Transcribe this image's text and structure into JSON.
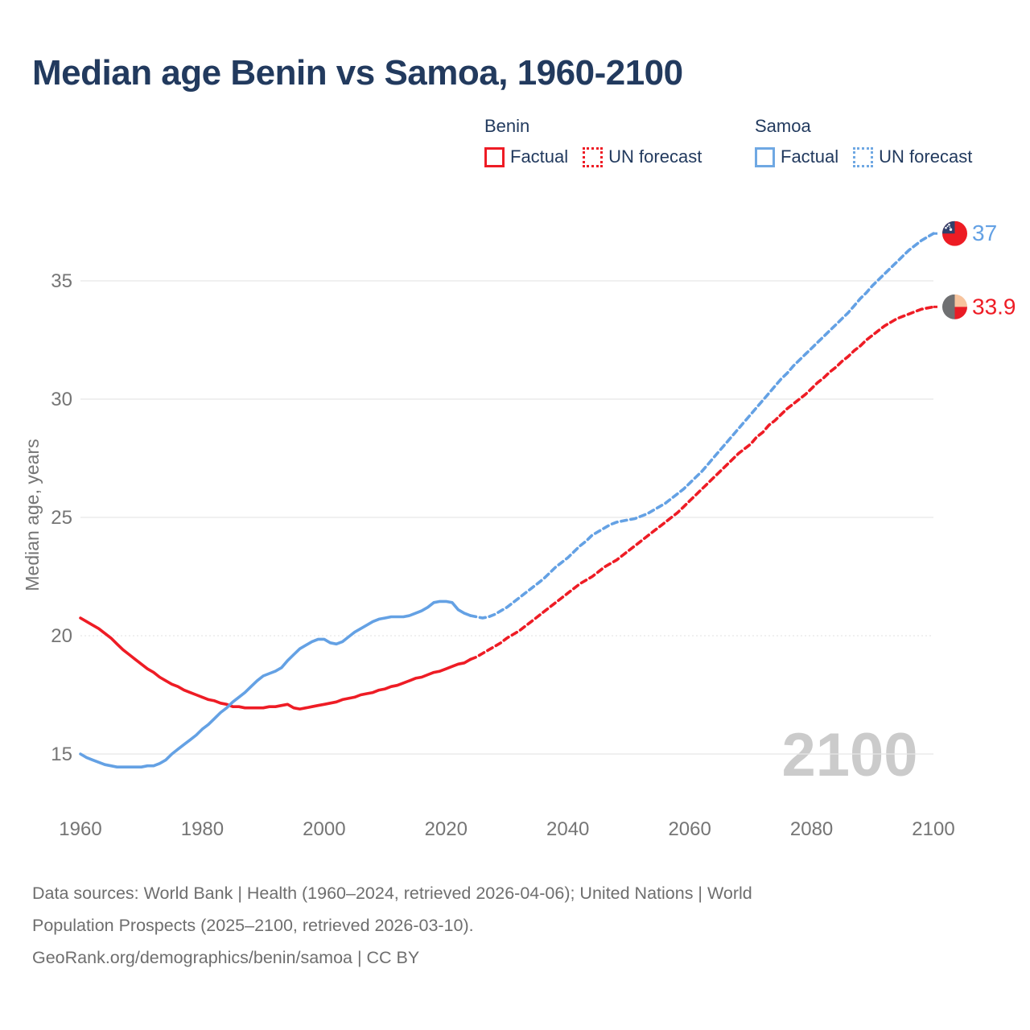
{
  "title": "Median age Benin vs Samoa, 1960-2100",
  "legend": {
    "groups": [
      {
        "country": "Benin",
        "color": "#EE1C25",
        "items": [
          {
            "label": "Factual",
            "line": "solid"
          },
          {
            "label": "UN forecast",
            "line": "dotted"
          }
        ]
      },
      {
        "country": "Samoa",
        "color": "#6FA8E3",
        "items": [
          {
            "label": "Factual",
            "line": "solid"
          },
          {
            "label": "UN forecast",
            "line": "dotted"
          }
        ]
      }
    ]
  },
  "chart_data": {
    "type": "line",
    "title": "Median age Benin vs Samoa, 1960-2100",
    "xlabel": "",
    "ylabel": "Median age, years",
    "x_ticks": [
      1960,
      1980,
      2000,
      2020,
      2040,
      2060,
      2080,
      2100
    ],
    "y_ticks": [
      15,
      20,
      25,
      30,
      35
    ],
    "xlim": [
      1960,
      2100
    ],
    "ylim": [
      13.5,
      38.5
    ],
    "grid": "horizontal-only",
    "dotted_gridline_at": 20,
    "legend_position": "top-right",
    "watermark": "2100",
    "colors": {
      "benin": "#EE1C25",
      "samoa": "#64A1E4"
    },
    "series": [
      {
        "name": "Benin factual",
        "color": "#EE1C25",
        "style": "solid",
        "points": [
          [
            1960,
            20.75
          ],
          [
            1961,
            20.6
          ],
          [
            1962,
            20.45
          ],
          [
            1963,
            20.3
          ],
          [
            1964,
            20.1
          ],
          [
            1965,
            19.9
          ],
          [
            1966,
            19.65
          ],
          [
            1967,
            19.4
          ],
          [
            1968,
            19.2
          ],
          [
            1969,
            19.0
          ],
          [
            1970,
            18.8
          ],
          [
            1971,
            18.6
          ],
          [
            1972,
            18.45
          ],
          [
            1973,
            18.25
          ],
          [
            1974,
            18.1
          ],
          [
            1975,
            17.95
          ],
          [
            1976,
            17.85
          ],
          [
            1977,
            17.7
          ],
          [
            1978,
            17.6
          ],
          [
            1979,
            17.5
          ],
          [
            1980,
            17.4
          ],
          [
            1981,
            17.3
          ],
          [
            1982,
            17.25
          ],
          [
            1983,
            17.15
          ],
          [
            1984,
            17.1
          ],
          [
            1985,
            17.0
          ],
          [
            1986,
            17.0
          ],
          [
            1987,
            16.95
          ],
          [
            1988,
            16.95
          ],
          [
            1989,
            16.95
          ],
          [
            1990,
            16.95
          ],
          [
            1991,
            17.0
          ],
          [
            1992,
            17.0
          ],
          [
            1993,
            17.05
          ],
          [
            1994,
            17.1
          ],
          [
            1995,
            16.95
          ],
          [
            1996,
            16.9
          ],
          [
            1997,
            16.95
          ],
          [
            1998,
            17.0
          ],
          [
            1999,
            17.05
          ],
          [
            2000,
            17.1
          ],
          [
            2001,
            17.15
          ],
          [
            2002,
            17.2
          ],
          [
            2003,
            17.3
          ],
          [
            2004,
            17.35
          ],
          [
            2005,
            17.4
          ],
          [
            2006,
            17.5
          ],
          [
            2007,
            17.55
          ],
          [
            2008,
            17.6
          ],
          [
            2009,
            17.7
          ],
          [
            2010,
            17.75
          ],
          [
            2011,
            17.85
          ],
          [
            2012,
            17.9
          ],
          [
            2013,
            18.0
          ],
          [
            2014,
            18.1
          ],
          [
            2015,
            18.2
          ],
          [
            2016,
            18.25
          ],
          [
            2017,
            18.35
          ],
          [
            2018,
            18.45
          ],
          [
            2019,
            18.5
          ],
          [
            2020,
            18.6
          ],
          [
            2021,
            18.7
          ],
          [
            2022,
            18.8
          ],
          [
            2023,
            18.85
          ],
          [
            2024,
            19.0
          ]
        ]
      },
      {
        "name": "Benin UN forecast",
        "color": "#EE1C25",
        "style": "dashed",
        "points": [
          [
            2024,
            19.0
          ],
          [
            2025,
            19.1
          ],
          [
            2026,
            19.25
          ],
          [
            2027,
            19.4
          ],
          [
            2028,
            19.55
          ],
          [
            2029,
            19.7
          ],
          [
            2030,
            19.9
          ],
          [
            2031,
            20.05
          ],
          [
            2032,
            20.2
          ],
          [
            2033,
            20.4
          ],
          [
            2034,
            20.6
          ],
          [
            2035,
            20.8
          ],
          [
            2036,
            21.0
          ],
          [
            2037,
            21.2
          ],
          [
            2038,
            21.4
          ],
          [
            2039,
            21.6
          ],
          [
            2040,
            21.8
          ],
          [
            2041,
            22.0
          ],
          [
            2042,
            22.2
          ],
          [
            2043,
            22.35
          ],
          [
            2044,
            22.5
          ],
          [
            2045,
            22.7
          ],
          [
            2046,
            22.9
          ],
          [
            2047,
            23.05
          ],
          [
            2048,
            23.2
          ],
          [
            2049,
            23.4
          ],
          [
            2050,
            23.6
          ],
          [
            2051,
            23.8
          ],
          [
            2052,
            24.0
          ],
          [
            2053,
            24.2
          ],
          [
            2054,
            24.4
          ],
          [
            2055,
            24.6
          ],
          [
            2056,
            24.8
          ],
          [
            2057,
            25.0
          ],
          [
            2058,
            25.2
          ],
          [
            2059,
            25.45
          ],
          [
            2060,
            25.7
          ],
          [
            2061,
            25.95
          ],
          [
            2062,
            26.2
          ],
          [
            2063,
            26.45
          ],
          [
            2064,
            26.7
          ],
          [
            2065,
            26.95
          ],
          [
            2066,
            27.2
          ],
          [
            2067,
            27.45
          ],
          [
            2068,
            27.7
          ],
          [
            2069,
            27.9
          ],
          [
            2070,
            28.1
          ],
          [
            2071,
            28.4
          ],
          [
            2072,
            28.6
          ],
          [
            2073,
            28.9
          ],
          [
            2074,
            29.1
          ],
          [
            2075,
            29.35
          ],
          [
            2076,
            29.6
          ],
          [
            2077,
            29.8
          ],
          [
            2078,
            30.0
          ],
          [
            2079,
            30.2
          ],
          [
            2080,
            30.45
          ],
          [
            2081,
            30.7
          ],
          [
            2082,
            30.9
          ],
          [
            2083,
            31.15
          ],
          [
            2084,
            31.35
          ],
          [
            2085,
            31.6
          ],
          [
            2086,
            31.8
          ],
          [
            2087,
            32.05
          ],
          [
            2088,
            32.25
          ],
          [
            2089,
            32.5
          ],
          [
            2090,
            32.7
          ],
          [
            2091,
            32.9
          ],
          [
            2092,
            33.1
          ],
          [
            2093,
            33.25
          ],
          [
            2094,
            33.4
          ],
          [
            2095,
            33.5
          ],
          [
            2096,
            33.6
          ],
          [
            2097,
            33.7
          ],
          [
            2098,
            33.8
          ],
          [
            2099,
            33.85
          ],
          [
            2100,
            33.9
          ]
        ]
      },
      {
        "name": "Samoa factual",
        "color": "#64A1E4",
        "style": "solid",
        "points": [
          [
            1960,
            15.0
          ],
          [
            1961,
            14.85
          ],
          [
            1962,
            14.75
          ],
          [
            1963,
            14.65
          ],
          [
            1964,
            14.55
          ],
          [
            1965,
            14.5
          ],
          [
            1966,
            14.45
          ],
          [
            1967,
            14.45
          ],
          [
            1968,
            14.45
          ],
          [
            1969,
            14.45
          ],
          [
            1970,
            14.45
          ],
          [
            1971,
            14.5
          ],
          [
            1972,
            14.5
          ],
          [
            1973,
            14.6
          ],
          [
            1974,
            14.75
          ],
          [
            1975,
            15.0
          ],
          [
            1976,
            15.2
          ],
          [
            1977,
            15.4
          ],
          [
            1978,
            15.6
          ],
          [
            1979,
            15.8
          ],
          [
            1980,
            16.05
          ],
          [
            1981,
            16.25
          ],
          [
            1982,
            16.5
          ],
          [
            1983,
            16.75
          ],
          [
            1984,
            16.95
          ],
          [
            1985,
            17.2
          ],
          [
            1986,
            17.4
          ],
          [
            1987,
            17.6
          ],
          [
            1988,
            17.85
          ],
          [
            1989,
            18.1
          ],
          [
            1990,
            18.3
          ],
          [
            1991,
            18.4
          ],
          [
            1992,
            18.5
          ],
          [
            1993,
            18.65
          ],
          [
            1994,
            18.95
          ],
          [
            1995,
            19.2
          ],
          [
            1996,
            19.45
          ],
          [
            1997,
            19.6
          ],
          [
            1998,
            19.75
          ],
          [
            1999,
            19.85
          ],
          [
            2000,
            19.85
          ],
          [
            2001,
            19.7
          ],
          [
            2002,
            19.65
          ],
          [
            2003,
            19.75
          ],
          [
            2004,
            19.95
          ],
          [
            2005,
            20.15
          ],
          [
            2006,
            20.3
          ],
          [
            2007,
            20.45
          ],
          [
            2008,
            20.6
          ],
          [
            2009,
            20.7
          ],
          [
            2010,
            20.75
          ],
          [
            2011,
            20.8
          ],
          [
            2012,
            20.8
          ],
          [
            2013,
            20.8
          ],
          [
            2014,
            20.85
          ],
          [
            2015,
            20.95
          ],
          [
            2016,
            21.05
          ],
          [
            2017,
            21.2
          ],
          [
            2018,
            21.4
          ],
          [
            2019,
            21.45
          ],
          [
            2020,
            21.45
          ],
          [
            2021,
            21.4
          ],
          [
            2022,
            21.1
          ],
          [
            2023,
            20.95
          ],
          [
            2024,
            20.85
          ]
        ]
      },
      {
        "name": "Samoa UN forecast",
        "color": "#64A1E4",
        "style": "dashed",
        "points": [
          [
            2024,
            20.85
          ],
          [
            2025,
            20.8
          ],
          [
            2026,
            20.75
          ],
          [
            2027,
            20.8
          ],
          [
            2028,
            20.9
          ],
          [
            2029,
            21.05
          ],
          [
            2030,
            21.2
          ],
          [
            2031,
            21.4
          ],
          [
            2032,
            21.6
          ],
          [
            2033,
            21.8
          ],
          [
            2034,
            22.0
          ],
          [
            2035,
            22.2
          ],
          [
            2036,
            22.4
          ],
          [
            2037,
            22.65
          ],
          [
            2038,
            22.9
          ],
          [
            2039,
            23.1
          ],
          [
            2040,
            23.3
          ],
          [
            2041,
            23.55
          ],
          [
            2042,
            23.8
          ],
          [
            2043,
            24.0
          ],
          [
            2044,
            24.25
          ],
          [
            2045,
            24.4
          ],
          [
            2046,
            24.55
          ],
          [
            2047,
            24.7
          ],
          [
            2048,
            24.8
          ],
          [
            2049,
            24.85
          ],
          [
            2050,
            24.9
          ],
          [
            2051,
            24.95
          ],
          [
            2052,
            25.05
          ],
          [
            2053,
            25.15
          ],
          [
            2054,
            25.3
          ],
          [
            2055,
            25.45
          ],
          [
            2056,
            25.6
          ],
          [
            2057,
            25.8
          ],
          [
            2058,
            26.0
          ],
          [
            2059,
            26.2
          ],
          [
            2060,
            26.45
          ],
          [
            2061,
            26.7
          ],
          [
            2062,
            26.95
          ],
          [
            2063,
            27.25
          ],
          [
            2064,
            27.55
          ],
          [
            2065,
            27.85
          ],
          [
            2066,
            28.15
          ],
          [
            2067,
            28.45
          ],
          [
            2068,
            28.75
          ],
          [
            2069,
            29.05
          ],
          [
            2070,
            29.35
          ],
          [
            2071,
            29.65
          ],
          [
            2072,
            29.95
          ],
          [
            2073,
            30.25
          ],
          [
            2074,
            30.55
          ],
          [
            2075,
            30.85
          ],
          [
            2076,
            31.1
          ],
          [
            2077,
            31.4
          ],
          [
            2078,
            31.65
          ],
          [
            2079,
            31.9
          ],
          [
            2080,
            32.15
          ],
          [
            2081,
            32.4
          ],
          [
            2082,
            32.65
          ],
          [
            2083,
            32.9
          ],
          [
            2084,
            33.15
          ],
          [
            2085,
            33.4
          ],
          [
            2086,
            33.65
          ],
          [
            2087,
            33.95
          ],
          [
            2088,
            34.25
          ],
          [
            2089,
            34.5
          ],
          [
            2090,
            34.8
          ],
          [
            2091,
            35.05
          ],
          [
            2092,
            35.3
          ],
          [
            2093,
            35.55
          ],
          [
            2094,
            35.8
          ],
          [
            2095,
            36.05
          ],
          [
            2096,
            36.3
          ],
          [
            2097,
            36.5
          ],
          [
            2098,
            36.7
          ],
          [
            2099,
            36.85
          ],
          [
            2100,
            37.0
          ]
        ]
      }
    ],
    "end_labels": [
      {
        "text": "37",
        "value": 37,
        "color": "#64A1E4",
        "flag": "samoa",
        "flag_colors": {
          "base": "#ED1C24",
          "canton": "#32406B",
          "stars": "#FFFFFF"
        }
      },
      {
        "text": "33.9",
        "value": 33.9,
        "color": "#EE1C25",
        "flag": "benin",
        "flag_colors": {
          "left": "#6F7072",
          "top_right": "#F7C49E",
          "bottom_right": "#E91C25"
        }
      }
    ]
  },
  "footer": {
    "lines": [
      "Data sources: World Bank | Health (1960–2024, retrieved 2026-04-06); United Nations | World",
      "Population Prospects (2025–2100, retrieved 2026-03-10).",
      "GeoRank.org/demographics/benin/samoa | CC BY"
    ]
  }
}
